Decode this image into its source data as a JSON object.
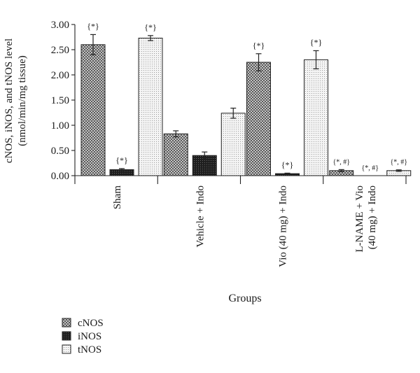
{
  "chart_data": {
    "type": "bar",
    "title": "",
    "xlabel": "Groups",
    "ylabel_lines": [
      "cNOS, iNOS, and tNOS level",
      "(nmol/min/mg tissue)"
    ],
    "ylim": [
      0,
      3.0
    ],
    "yticks": [
      "0.00",
      "0.50",
      "1.00",
      "1.50",
      "2.00",
      "2.50",
      "3.00"
    ],
    "categories": [
      [
        "Sham"
      ],
      [
        "Vehicle + Indo"
      ],
      [
        "Vio (40 mg) + Indo"
      ],
      [
        "L-NAME + Vio",
        "(40 mg) + Indo"
      ]
    ],
    "series": [
      {
        "name": "cNOS",
        "pattern": "check",
        "values": [
          2.6,
          0.83,
          2.25,
          0.1
        ],
        "errors": [
          0.2,
          0.06,
          0.17,
          0.02
        ],
        "annotations": [
          "{*}",
          "",
          "{*}",
          "{*, #}"
        ]
      },
      {
        "name": "iNOS",
        "pattern": "dark",
        "values": [
          0.12,
          0.4,
          0.04,
          0.0
        ],
        "errors": [
          0.02,
          0.07,
          0.01,
          0.0
        ],
        "annotations": [
          "{*}",
          "",
          "{*}",
          "{*, #}"
        ]
      },
      {
        "name": "tNOS",
        "pattern": "dots",
        "values": [
          2.73,
          1.24,
          2.3,
          0.1
        ],
        "errors": [
          0.05,
          0.1,
          0.18,
          0.015
        ],
        "annotations": [
          "{*}",
          "",
          "{*}",
          "{*, #}"
        ]
      }
    ],
    "legend": [
      "cNOS",
      "iNOS",
      "tNOS"
    ],
    "legend_position": "bottom-left",
    "grid": false
  }
}
